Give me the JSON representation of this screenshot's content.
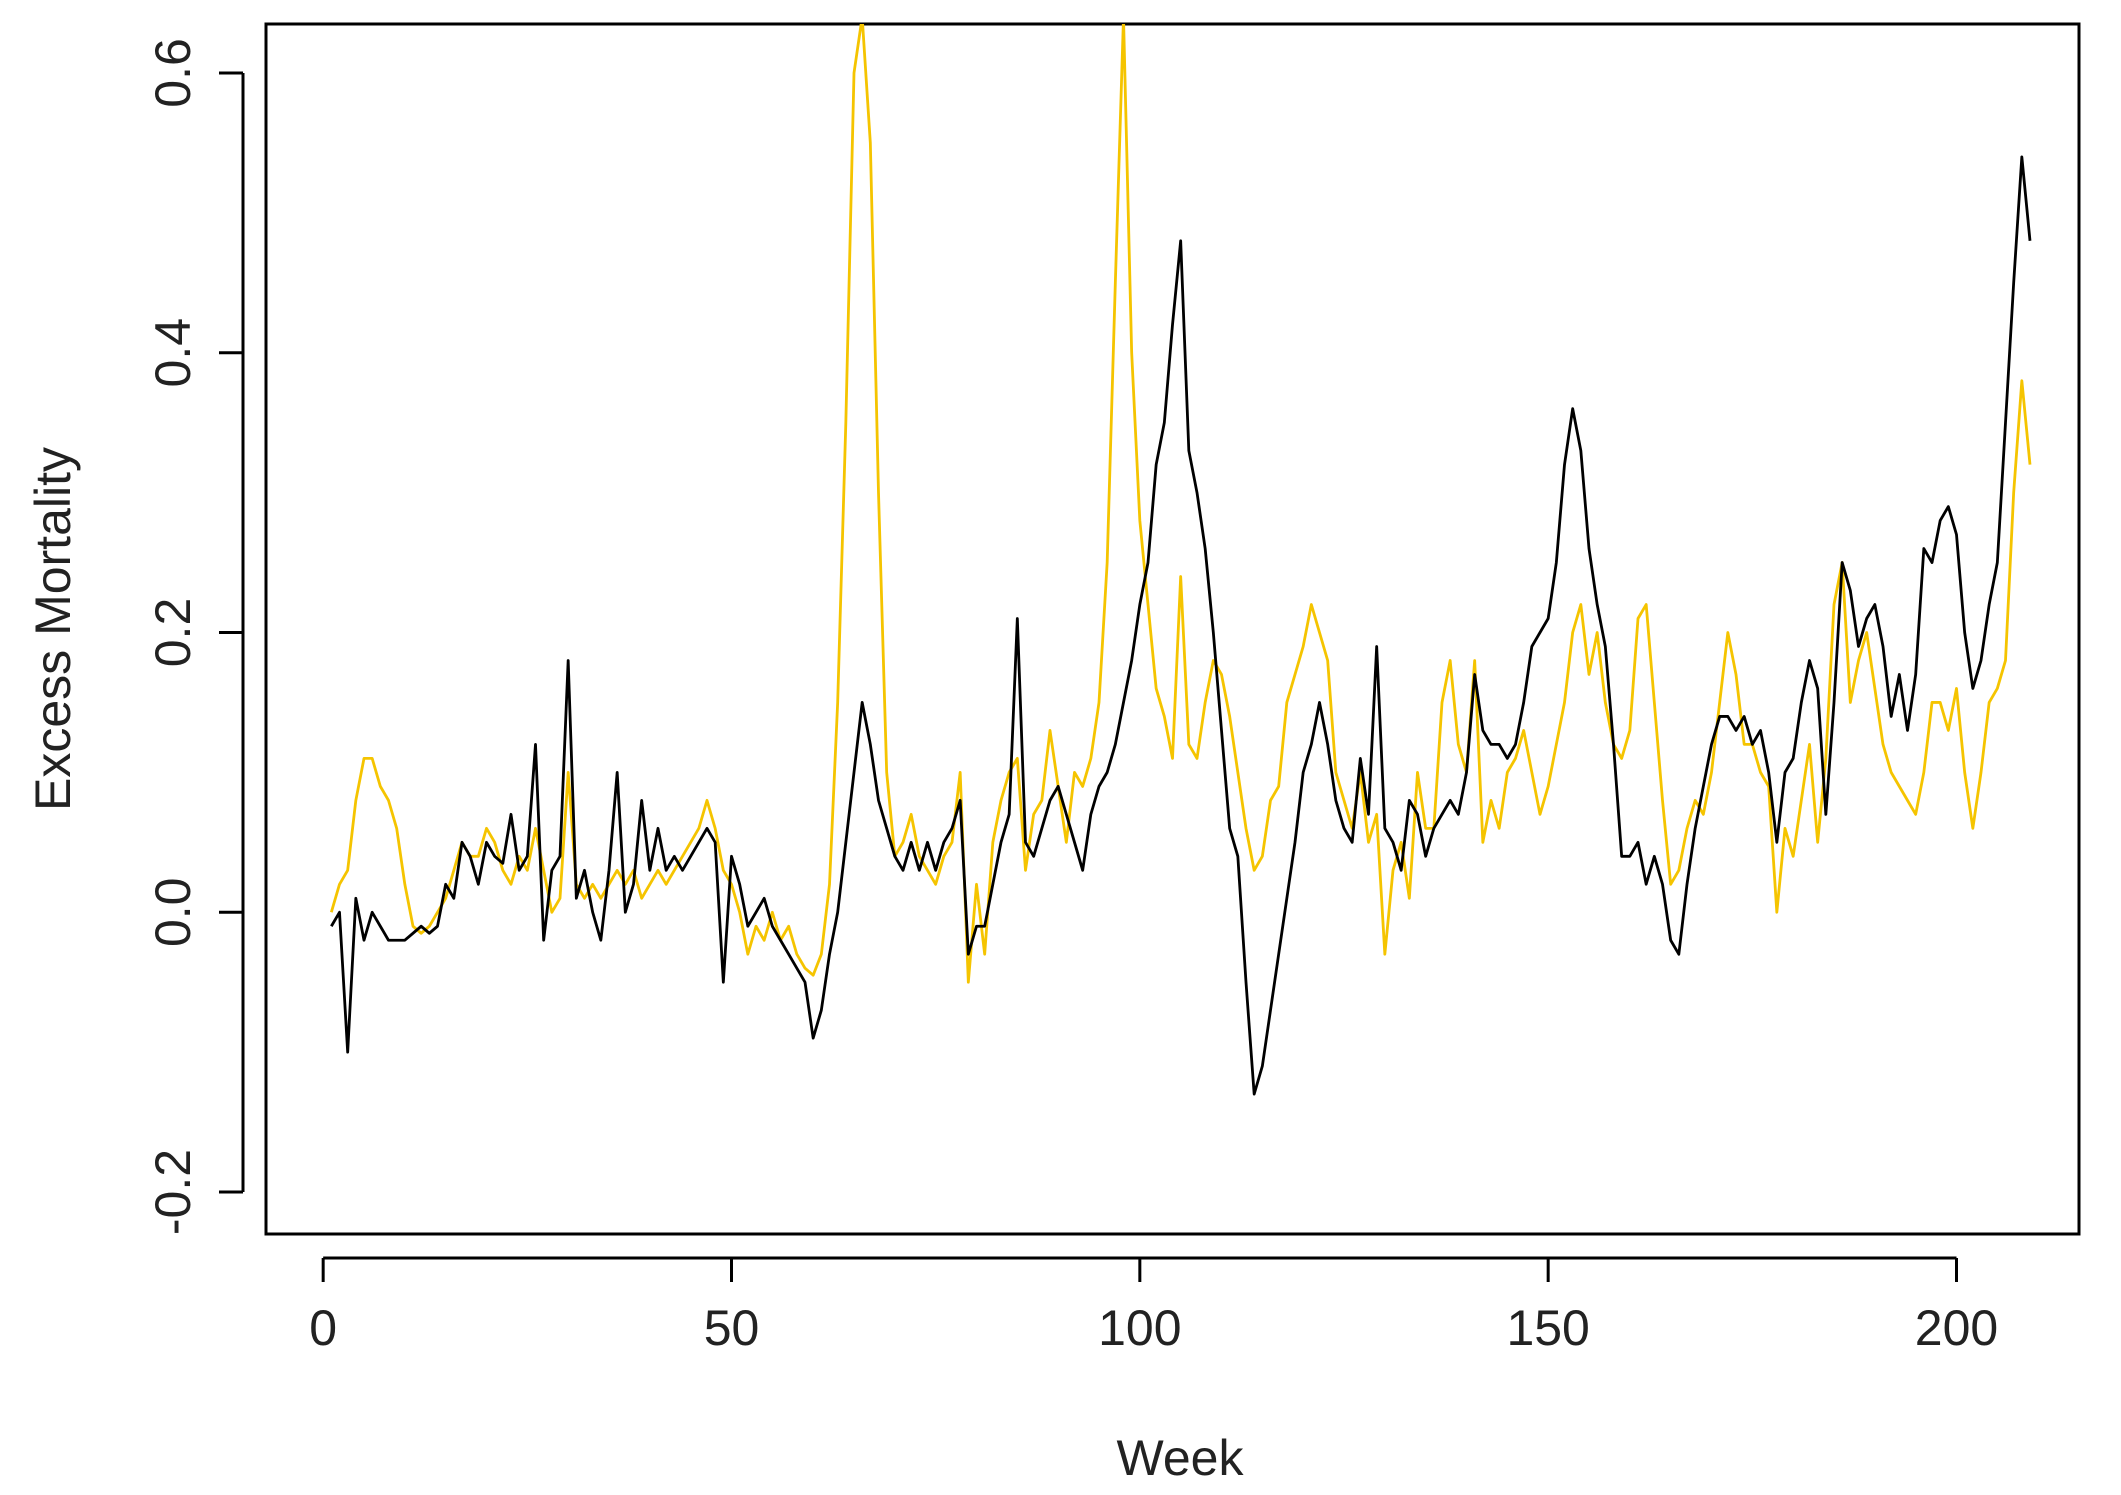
{
  "chart_data": {
    "type": "line",
    "xlabel": "Week",
    "ylabel": "Excess Mortality",
    "xlim": [
      -7,
      215
    ],
    "ylim": [
      -0.23,
      0.635
    ],
    "xticks": [
      0,
      50,
      100,
      150,
      200
    ],
    "yticks": [
      -0.2,
      {
        "value": 0,
        "label": "0.0"
      },
      0.2,
      0.4,
      0.6
    ],
    "x": [
      1,
      2,
      3,
      4,
      5,
      6,
      7,
      8,
      9,
      10,
      11,
      12,
      13,
      14,
      15,
      16,
      17,
      18,
      19,
      20,
      21,
      22,
      23,
      24,
      25,
      26,
      27,
      28,
      29,
      30,
      31,
      32,
      33,
      34,
      35,
      36,
      37,
      38,
      39,
      40,
      41,
      42,
      43,
      44,
      45,
      46,
      47,
      48,
      49,
      50,
      51,
      52,
      53,
      54,
      55,
      56,
      57,
      58,
      59,
      60,
      61,
      62,
      63,
      64,
      65,
      66,
      67,
      68,
      69,
      70,
      71,
      72,
      73,
      74,
      75,
      76,
      77,
      78,
      79,
      80,
      81,
      82,
      83,
      84,
      85,
      86,
      87,
      88,
      89,
      90,
      91,
      92,
      93,
      94,
      95,
      96,
      97,
      98,
      99,
      100,
      101,
      102,
      103,
      104,
      105,
      106,
      107,
      108,
      109,
      110,
      111,
      112,
      113,
      114,
      115,
      116,
      117,
      118,
      119,
      120,
      121,
      122,
      123,
      124,
      125,
      126,
      127,
      128,
      129,
      130,
      131,
      132,
      133,
      134,
      135,
      136,
      137,
      138,
      139,
      140,
      141,
      142,
      143,
      144,
      145,
      146,
      147,
      148,
      149,
      150,
      151,
      152,
      153,
      154,
      155,
      156,
      157,
      158,
      159,
      160,
      161,
      162,
      163,
      164,
      165,
      166,
      167,
      168,
      169,
      170,
      171,
      172,
      173,
      174,
      175,
      176,
      177,
      178,
      179,
      180,
      181,
      182,
      183,
      184,
      185,
      186,
      187,
      188,
      189,
      190,
      191,
      192,
      193,
      194,
      195,
      196,
      197,
      198,
      199,
      200,
      201,
      202,
      203,
      204,
      205,
      206,
      207,
      208,
      209
    ],
    "series": [
      {
        "color": "#f5c400",
        "values": [
          0.0,
          0.02,
          0.03,
          0.08,
          0.11,
          0.11,
          0.09,
          0.08,
          0.06,
          0.02,
          -0.01,
          -0.015,
          -0.01,
          0.0,
          0.01,
          0.03,
          0.05,
          0.04,
          0.04,
          0.06,
          0.05,
          0.03,
          0.02,
          0.04,
          0.03,
          0.06,
          0.03,
          0.0,
          0.01,
          0.1,
          0.02,
          0.01,
          0.02,
          0.01,
          0.02,
          0.03,
          0.02,
          0.03,
          0.01,
          0.02,
          0.03,
          0.02,
          0.03,
          0.04,
          0.05,
          0.06,
          0.08,
          0.06,
          0.03,
          0.02,
          0.0,
          -0.03,
          -0.01,
          -0.02,
          0.0,
          -0.02,
          -0.01,
          -0.03,
          -0.04,
          -0.045,
          -0.03,
          0.02,
          0.15,
          0.35,
          0.6,
          0.64,
          0.55,
          0.3,
          0.1,
          0.04,
          0.05,
          0.07,
          0.04,
          0.03,
          0.02,
          0.04,
          0.05,
          0.1,
          -0.05,
          0.02,
          -0.03,
          0.05,
          0.08,
          0.1,
          0.11,
          0.03,
          0.07,
          0.08,
          0.13,
          0.09,
          0.05,
          0.1,
          0.09,
          0.11,
          0.15,
          0.25,
          0.45,
          0.64,
          0.4,
          0.28,
          0.22,
          0.16,
          0.14,
          0.11,
          0.24,
          0.12,
          0.11,
          0.15,
          0.18,
          0.17,
          0.14,
          0.1,
          0.06,
          0.03,
          0.04,
          0.08,
          0.09,
          0.15,
          0.17,
          0.19,
          0.22,
          0.2,
          0.18,
          0.1,
          0.08,
          0.06,
          0.1,
          0.05,
          0.07,
          -0.03,
          0.03,
          0.05,
          0.01,
          0.1,
          0.06,
          0.06,
          0.15,
          0.18,
          0.12,
          0.1,
          0.18,
          0.05,
          0.08,
          0.06,
          0.1,
          0.11,
          0.13,
          0.1,
          0.07,
          0.09,
          0.12,
          0.15,
          0.2,
          0.22,
          0.17,
          0.2,
          0.15,
          0.12,
          0.11,
          0.13,
          0.21,
          0.22,
          0.15,
          0.08,
          0.02,
          0.03,
          0.06,
          0.08,
          0.07,
          0.1,
          0.15,
          0.2,
          0.17,
          0.12,
          0.12,
          0.1,
          0.09,
          0.0,
          0.06,
          0.04,
          0.08,
          0.12,
          0.05,
          0.11,
          0.22,
          0.25,
          0.15,
          0.18,
          0.2,
          0.16,
          0.12,
          0.1,
          0.09,
          0.08,
          0.07,
          0.1,
          0.15,
          0.15,
          0.13,
          0.16,
          0.1,
          0.06,
          0.1,
          0.15,
          0.16,
          0.18,
          0.3,
          0.38,
          0.32
        ]
      },
      {
        "color": "#000000",
        "values": [
          -0.01,
          0.0,
          -0.1,
          0.01,
          -0.02,
          0.0,
          -0.01,
          -0.02,
          -0.02,
          -0.02,
          -0.015,
          -0.01,
          -0.015,
          -0.01,
          0.02,
          0.01,
          0.05,
          0.04,
          0.02,
          0.05,
          0.04,
          0.035,
          0.07,
          0.03,
          0.04,
          0.12,
          -0.02,
          0.03,
          0.04,
          0.18,
          0.01,
          0.03,
          0.0,
          -0.02,
          0.03,
          0.1,
          0.0,
          0.02,
          0.08,
          0.03,
          0.06,
          0.03,
          0.04,
          0.03,
          0.04,
          0.05,
          0.06,
          0.05,
          -0.05,
          0.04,
          0.02,
          -0.01,
          0.0,
          0.01,
          -0.01,
          -0.02,
          -0.03,
          -0.04,
          -0.05,
          -0.09,
          -0.07,
          -0.03,
          0.0,
          0.05,
          0.1,
          0.15,
          0.12,
          0.08,
          0.06,
          0.04,
          0.03,
          0.05,
          0.03,
          0.05,
          0.03,
          0.05,
          0.06,
          0.08,
          -0.03,
          -0.01,
          -0.01,
          0.02,
          0.05,
          0.07,
          0.21,
          0.05,
          0.04,
          0.06,
          0.08,
          0.09,
          0.07,
          0.05,
          0.03,
          0.07,
          0.09,
          0.1,
          0.12,
          0.15,
          0.18,
          0.22,
          0.25,
          0.32,
          0.35,
          0.42,
          0.48,
          0.33,
          0.3,
          0.26,
          0.2,
          0.13,
          0.06,
          0.04,
          -0.05,
          -0.13,
          -0.11,
          -0.07,
          -0.03,
          0.01,
          0.05,
          0.1,
          0.12,
          0.15,
          0.12,
          0.08,
          0.06,
          0.05,
          0.11,
          0.07,
          0.19,
          0.06,
          0.05,
          0.03,
          0.08,
          0.07,
          0.04,
          0.06,
          0.07,
          0.08,
          0.07,
          0.1,
          0.17,
          0.13,
          0.12,
          0.12,
          0.11,
          0.12,
          0.15,
          0.19,
          0.2,
          0.21,
          0.25,
          0.32,
          0.36,
          0.33,
          0.26,
          0.22,
          0.19,
          0.12,
          0.04,
          0.04,
          0.05,
          0.02,
          0.04,
          0.02,
          -0.02,
          -0.03,
          0.02,
          0.06,
          0.09,
          0.12,
          0.14,
          0.14,
          0.13,
          0.14,
          0.12,
          0.13,
          0.1,
          0.05,
          0.1,
          0.11,
          0.15,
          0.18,
          0.16,
          0.07,
          0.15,
          0.25,
          0.23,
          0.19,
          0.21,
          0.22,
          0.19,
          0.14,
          0.17,
          0.13,
          0.17,
          0.26,
          0.25,
          0.28,
          0.29,
          0.27,
          0.2,
          0.16,
          0.18,
          0.22,
          0.25,
          0.35,
          0.45,
          0.54,
          0.48
        ]
      }
    ]
  }
}
